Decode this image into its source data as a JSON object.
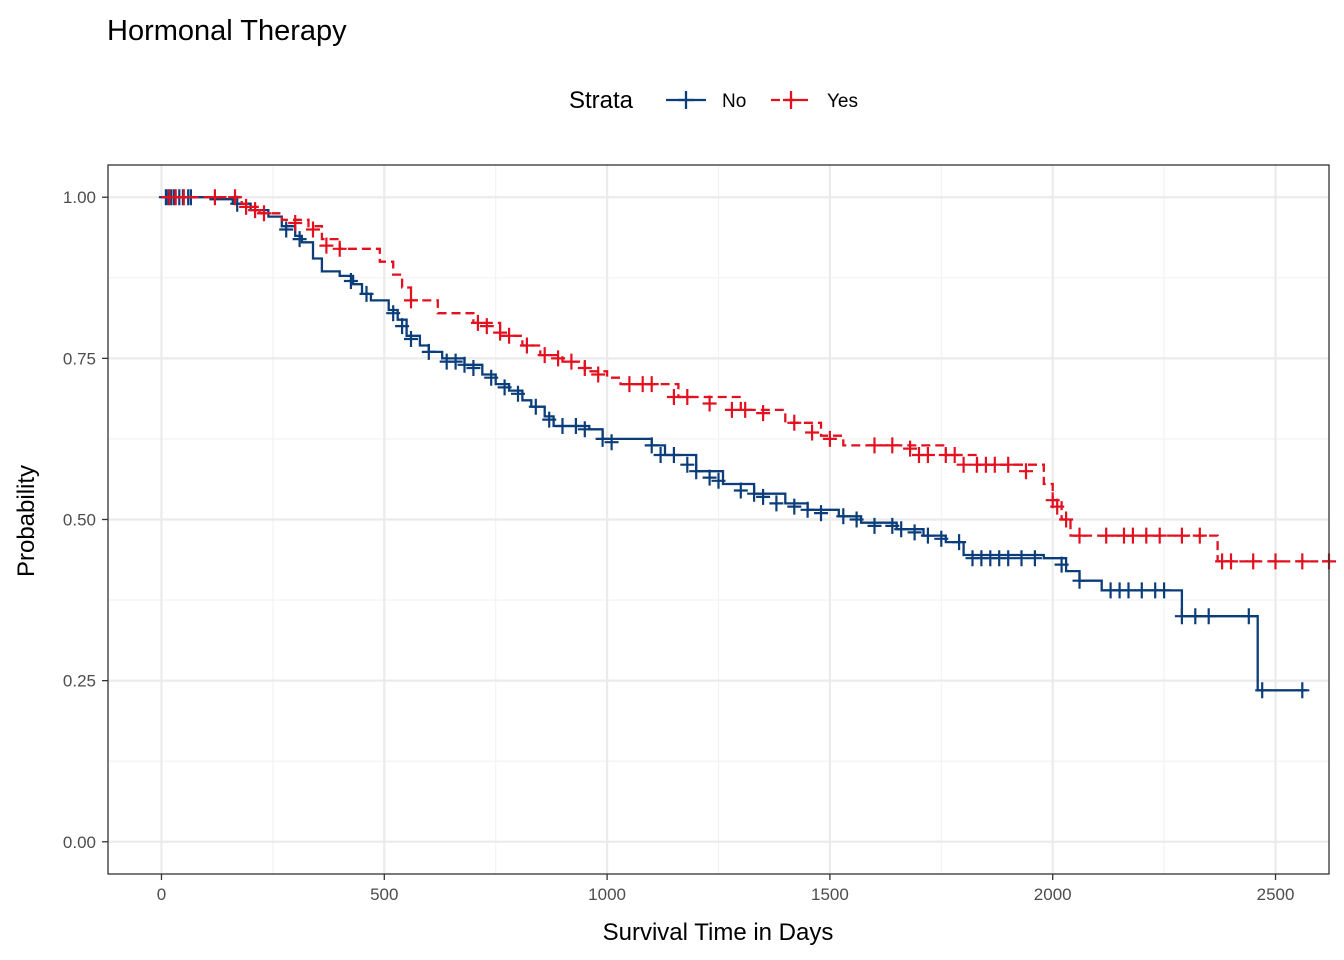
{
  "chart_data": {
    "type": "line",
    "title": "Hormonal Therapy",
    "xlabel": "Survival Time in Days",
    "ylabel": "Probability",
    "xlim": [
      -120,
      2620
    ],
    "ylim": [
      -0.05,
      1.05
    ],
    "x_ticks": [
      0,
      500,
      1000,
      1500,
      2000,
      2500
    ],
    "x_tick_labels": [
      "0",
      "500",
      "1000",
      "1500",
      "2000",
      "2500"
    ],
    "y_ticks": [
      0,
      0.25,
      0.5,
      0.75,
      1.0
    ],
    "y_tick_labels": [
      "0.00",
      "0.25",
      "0.50",
      "0.75",
      "1.00"
    ],
    "grid": true,
    "legend": {
      "title": "Strata",
      "position": "top",
      "entries": [
        "No",
        "Yes"
      ]
    },
    "series": [
      {
        "name": "No",
        "color": "#0b3d7a",
        "dash": "solid",
        "steps": [
          [
            0,
            1.0
          ],
          [
            72,
            1.0
          ],
          [
            110,
            0.997
          ],
          [
            160,
            0.99
          ],
          [
            200,
            0.98
          ],
          [
            240,
            0.97
          ],
          [
            270,
            0.955
          ],
          [
            300,
            0.94
          ],
          [
            315,
            0.93
          ],
          [
            340,
            0.905
          ],
          [
            360,
            0.885
          ],
          [
            400,
            0.878
          ],
          [
            430,
            0.865
          ],
          [
            450,
            0.85
          ],
          [
            470,
            0.84
          ],
          [
            510,
            0.825
          ],
          [
            530,
            0.81
          ],
          [
            550,
            0.785
          ],
          [
            580,
            0.77
          ],
          [
            600,
            0.76
          ],
          [
            630,
            0.75
          ],
          [
            680,
            0.74
          ],
          [
            720,
            0.725
          ],
          [
            750,
            0.71
          ],
          [
            780,
            0.7
          ],
          [
            810,
            0.685
          ],
          [
            830,
            0.675
          ],
          [
            860,
            0.66
          ],
          [
            880,
            0.645
          ],
          [
            960,
            0.64
          ],
          [
            990,
            0.625
          ],
          [
            1100,
            0.615
          ],
          [
            1130,
            0.6
          ],
          [
            1200,
            0.575
          ],
          [
            1260,
            0.555
          ],
          [
            1330,
            0.54
          ],
          [
            1400,
            0.525
          ],
          [
            1450,
            0.515
          ],
          [
            1520,
            0.505
          ],
          [
            1570,
            0.495
          ],
          [
            1650,
            0.485
          ],
          [
            1710,
            0.475
          ],
          [
            1760,
            0.465
          ],
          [
            1800,
            0.445
          ],
          [
            1980,
            0.44
          ],
          [
            2030,
            0.42
          ],
          [
            2060,
            0.405
          ],
          [
            2110,
            0.39
          ],
          [
            2290,
            0.35
          ],
          [
            2460,
            0.235
          ],
          [
            2570,
            0.235
          ]
        ],
        "censors": [
          [
            10,
            1.0
          ],
          [
            15,
            1.0
          ],
          [
            22,
            1.0
          ],
          [
            28,
            1.0
          ],
          [
            40,
            1.0
          ],
          [
            48,
            1.0
          ],
          [
            60,
            1.0
          ],
          [
            66,
            1.0
          ],
          [
            170,
            0.99
          ],
          [
            280,
            0.95
          ],
          [
            310,
            0.935
          ],
          [
            425,
            0.87
          ],
          [
            460,
            0.85
          ],
          [
            520,
            0.82
          ],
          [
            540,
            0.8
          ],
          [
            560,
            0.78
          ],
          [
            600,
            0.76
          ],
          [
            640,
            0.745
          ],
          [
            660,
            0.745
          ],
          [
            680,
            0.74
          ],
          [
            700,
            0.735
          ],
          [
            740,
            0.72
          ],
          [
            770,
            0.705
          ],
          [
            800,
            0.695
          ],
          [
            840,
            0.675
          ],
          [
            870,
            0.655
          ],
          [
            900,
            0.645
          ],
          [
            930,
            0.645
          ],
          [
            950,
            0.64
          ],
          [
            990,
            0.625
          ],
          [
            1010,
            0.62
          ],
          [
            1100,
            0.615
          ],
          [
            1120,
            0.6
          ],
          [
            1150,
            0.6
          ],
          [
            1180,
            0.585
          ],
          [
            1200,
            0.575
          ],
          [
            1230,
            0.565
          ],
          [
            1250,
            0.56
          ],
          [
            1300,
            0.545
          ],
          [
            1330,
            0.54
          ],
          [
            1350,
            0.535
          ],
          [
            1380,
            0.525
          ],
          [
            1420,
            0.52
          ],
          [
            1450,
            0.515
          ],
          [
            1480,
            0.51
          ],
          [
            1530,
            0.505
          ],
          [
            1560,
            0.5
          ],
          [
            1600,
            0.49
          ],
          [
            1640,
            0.49
          ],
          [
            1660,
            0.485
          ],
          [
            1690,
            0.48
          ],
          [
            1720,
            0.475
          ],
          [
            1750,
            0.47
          ],
          [
            1790,
            0.465
          ],
          [
            1820,
            0.44
          ],
          [
            1840,
            0.44
          ],
          [
            1860,
            0.44
          ],
          [
            1880,
            0.44
          ],
          [
            1900,
            0.44
          ],
          [
            1930,
            0.44
          ],
          [
            1960,
            0.44
          ],
          [
            2020,
            0.43
          ],
          [
            2060,
            0.405
          ],
          [
            2130,
            0.39
          ],
          [
            2150,
            0.39
          ],
          [
            2170,
            0.39
          ],
          [
            2200,
            0.39
          ],
          [
            2230,
            0.39
          ],
          [
            2250,
            0.39
          ],
          [
            2290,
            0.35
          ],
          [
            2320,
            0.35
          ],
          [
            2350,
            0.35
          ],
          [
            2440,
            0.35
          ],
          [
            2470,
            0.235
          ],
          [
            2560,
            0.235
          ]
        ]
      },
      {
        "name": "Yes",
        "color": "#e3101f",
        "dash": "dashed",
        "steps": [
          [
            0,
            1.0
          ],
          [
            160,
            1.0
          ],
          [
            180,
            0.99
          ],
          [
            200,
            0.985
          ],
          [
            220,
            0.975
          ],
          [
            270,
            0.965
          ],
          [
            330,
            0.955
          ],
          [
            360,
            0.935
          ],
          [
            400,
            0.92
          ],
          [
            490,
            0.9
          ],
          [
            520,
            0.88
          ],
          [
            540,
            0.86
          ],
          [
            560,
            0.84
          ],
          [
            620,
            0.82
          ],
          [
            700,
            0.805
          ],
          [
            760,
            0.785
          ],
          [
            810,
            0.77
          ],
          [
            850,
            0.755
          ],
          [
            900,
            0.745
          ],
          [
            950,
            0.73
          ],
          [
            1000,
            0.72
          ],
          [
            1030,
            0.71
          ],
          [
            1160,
            0.69
          ],
          [
            1300,
            0.67
          ],
          [
            1400,
            0.65
          ],
          [
            1480,
            0.63
          ],
          [
            1530,
            0.615
          ],
          [
            1760,
            0.6
          ],
          [
            1830,
            0.585
          ],
          [
            1980,
            0.555
          ],
          [
            2000,
            0.53
          ],
          [
            2020,
            0.5
          ],
          [
            2040,
            0.475
          ],
          [
            2370,
            0.435
          ],
          [
            2620,
            0.435
          ]
        ],
        "censors": [
          [
            18,
            1.0
          ],
          [
            32,
            1.0
          ],
          [
            50,
            1.0
          ],
          [
            120,
            1.0
          ],
          [
            165,
            1.0
          ],
          [
            190,
            0.985
          ],
          [
            210,
            0.98
          ],
          [
            230,
            0.975
          ],
          [
            300,
            0.96
          ],
          [
            340,
            0.95
          ],
          [
            370,
            0.925
          ],
          [
            400,
            0.92
          ],
          [
            560,
            0.84
          ],
          [
            710,
            0.805
          ],
          [
            730,
            0.8
          ],
          [
            760,
            0.79
          ],
          [
            780,
            0.785
          ],
          [
            820,
            0.77
          ],
          [
            860,
            0.755
          ],
          [
            890,
            0.75
          ],
          [
            920,
            0.745
          ],
          [
            950,
            0.735
          ],
          [
            980,
            0.725
          ],
          [
            1050,
            0.71
          ],
          [
            1080,
            0.71
          ],
          [
            1100,
            0.71
          ],
          [
            1150,
            0.69
          ],
          [
            1180,
            0.69
          ],
          [
            1230,
            0.68
          ],
          [
            1280,
            0.67
          ],
          [
            1310,
            0.67
          ],
          [
            1350,
            0.665
          ],
          [
            1420,
            0.65
          ],
          [
            1460,
            0.635
          ],
          [
            1500,
            0.625
          ],
          [
            1600,
            0.615
          ],
          [
            1640,
            0.615
          ],
          [
            1680,
            0.61
          ],
          [
            1700,
            0.6
          ],
          [
            1720,
            0.6
          ],
          [
            1760,
            0.6
          ],
          [
            1780,
            0.6
          ],
          [
            1800,
            0.585
          ],
          [
            1830,
            0.585
          ],
          [
            1850,
            0.585
          ],
          [
            1870,
            0.585
          ],
          [
            1900,
            0.585
          ],
          [
            1940,
            0.575
          ],
          [
            2000,
            0.53
          ],
          [
            2010,
            0.52
          ],
          [
            2030,
            0.5
          ],
          [
            2060,
            0.475
          ],
          [
            2120,
            0.475
          ],
          [
            2160,
            0.475
          ],
          [
            2180,
            0.475
          ],
          [
            2210,
            0.475
          ],
          [
            2240,
            0.475
          ],
          [
            2290,
            0.475
          ],
          [
            2330,
            0.475
          ],
          [
            2380,
            0.435
          ],
          [
            2400,
            0.435
          ],
          [
            2450,
            0.435
          ],
          [
            2500,
            0.435
          ],
          [
            2560,
            0.435
          ],
          [
            2620,
            0.435
          ]
        ]
      }
    ]
  }
}
